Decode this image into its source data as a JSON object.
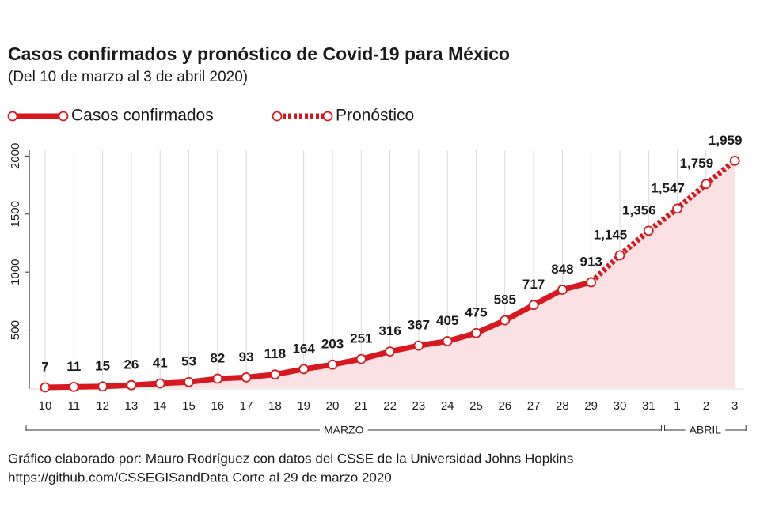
{
  "chart_data": {
    "type": "line",
    "title": "Casos confirmados y pronóstico de Covid-19 para México",
    "subtitle": "(Del 10 de marzo al 3 de abril 2020)",
    "categories": [
      "10",
      "11",
      "12",
      "13",
      "14",
      "15",
      "16",
      "17",
      "18",
      "19",
      "20",
      "21",
      "22",
      "23",
      "24",
      "25",
      "26",
      "27",
      "28",
      "29",
      "30",
      "31",
      "1",
      "2",
      "3"
    ],
    "groups": [
      "MARZO",
      "ABRIL"
    ],
    "series": [
      {
        "name": "Casos confirmados",
        "color": "#d6191f",
        "style": "solid",
        "values": [
          7,
          11,
          15,
          26,
          41,
          53,
          82,
          93,
          118,
          164,
          203,
          251,
          316,
          367,
          405,
          475,
          585,
          717,
          848,
          913,
          null,
          null,
          null,
          null,
          null
        ]
      },
      {
        "name": "Pronóstico",
        "color": "#d6191f",
        "style": "dashed",
        "values": [
          null,
          null,
          null,
          null,
          null,
          null,
          null,
          null,
          null,
          null,
          null,
          null,
          null,
          null,
          null,
          null,
          null,
          null,
          null,
          null,
          1145,
          1356,
          1547,
          1759,
          1959
        ],
        "value_labels": [
          null,
          null,
          null,
          null,
          null,
          null,
          null,
          null,
          null,
          null,
          null,
          null,
          null,
          null,
          null,
          null,
          null,
          null,
          null,
          null,
          "1,145",
          "1,356",
          "1,547",
          "1,759",
          "1,959"
        ]
      }
    ],
    "area_color": "#fbe1e3",
    "ylim": [
      0,
      2050
    ],
    "yticks": [
      500,
      1000,
      1500,
      2000
    ],
    "grid": true,
    "footnote": [
      "Gráfico elaborado por: Mauro Rodríguez con datos del CSSE de la Universidad Johns Hopkins",
      "https://github.com/CSSEGISandData Corte al 29 de marzo 2020"
    ]
  }
}
